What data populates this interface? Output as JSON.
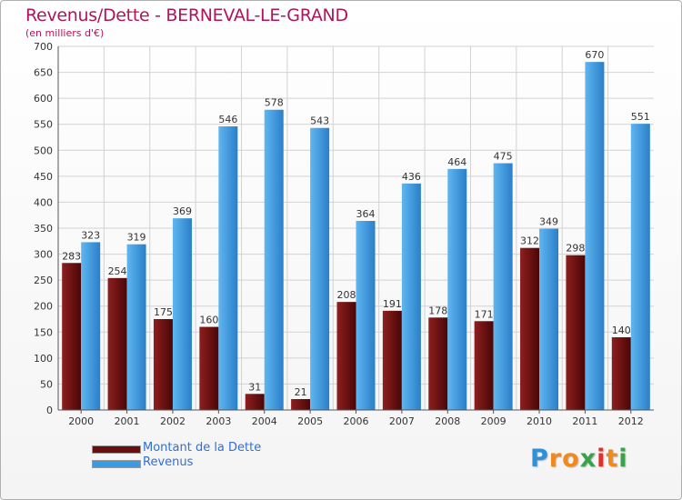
{
  "header": {
    "title": "Revenus/Dette - BERNEVAL-LE-GRAND",
    "subtitle": "(en milliers d'€)"
  },
  "chart_data": {
    "type": "bar",
    "title": "Revenus/Dette - BERNEVAL-LE-GRAND",
    "ylabel": "(en milliers d'€)",
    "xlabel": "",
    "categories": [
      "2000",
      "2001",
      "2002",
      "2003",
      "2004",
      "2005",
      "2006",
      "2007",
      "2008",
      "2009",
      "2010",
      "2011",
      "2012"
    ],
    "series": [
      {
        "name": "Montant de la Dette",
        "color": "#7a1414",
        "values": [
          283,
          254,
          175,
          160,
          31,
          21,
          208,
          191,
          178,
          171,
          312,
          298,
          140
        ]
      },
      {
        "name": "Revenus",
        "color": "#3a9be4",
        "values": [
          323,
          319,
          369,
          546,
          578,
          543,
          364,
          436,
          464,
          475,
          349,
          670,
          551
        ]
      }
    ],
    "ylim": [
      0,
      700
    ],
    "yticks": [
      0,
      50,
      100,
      150,
      200,
      250,
      300,
      350,
      400,
      450,
      500,
      550,
      600,
      650,
      700
    ],
    "grid": true,
    "legend": "bottom-left"
  },
  "legend": {
    "items": [
      {
        "label": "Montant de la Dette",
        "color": "#6a0f0f"
      },
      {
        "label": "Revenus",
        "color": "#3a9be4"
      }
    ]
  },
  "brand": {
    "letters": [
      {
        "ch": "P",
        "color": "#2f8fd8"
      },
      {
        "ch": "r",
        "color": "#f08a1e"
      },
      {
        "ch": "o",
        "color": "#f08a1e"
      },
      {
        "ch": "x",
        "color": "#3aa34a"
      },
      {
        "ch": "i",
        "color": "#e0302a"
      },
      {
        "ch": "t",
        "color": "#f08a1e"
      },
      {
        "ch": "i",
        "color": "#3aa34a"
      }
    ]
  }
}
